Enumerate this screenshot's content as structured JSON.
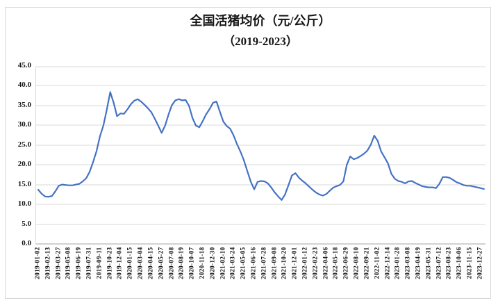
{
  "chart_data": {
    "type": "line",
    "title": "全国活猪均价（元/公斤）（2019-2023）",
    "title_line1": "全国活猪均价（元/公斤）",
    "title_line2": "（2019-2023）",
    "xlabel": "",
    "ylabel": "",
    "unit": "元/公斤",
    "legend": "none",
    "grid": "horizontal",
    "line_color": "#4472C4",
    "gridline_color": "#d9d9d9",
    "axis_line_color": "#a6a6a6",
    "ylim": [
      0,
      45
    ],
    "ytick_step": 5,
    "ytick_labels": [
      "45.0",
      "40.0",
      "35.0",
      "30.0",
      "25.0",
      "20.0",
      "15.0",
      "10.0",
      "5.0",
      "0.0"
    ],
    "points_per_tick": 3,
    "x_tick_labels": [
      "2019-01-02",
      "2019-02-13",
      "2019-03-27",
      "2019-05-08",
      "2019-06-19",
      "2019-07-31",
      "2019-09-11",
      "2019-10-23",
      "2019-12-04",
      "2020-01-15",
      "2020-03-04",
      "2020-04-15",
      "2020-05-27",
      "2020-07-08",
      "2020-08-19",
      "2020-10-07",
      "2020-11-18",
      "2020-12-30",
      "2021-02-10",
      "2021-03-24",
      "2021-05-05",
      "2021-06-16",
      "2021-07-28",
      "2021-09-08",
      "2021-10-20",
      "2021-12-01",
      "2022-01-12",
      "2022-02-23",
      "2022-04-06",
      "2022-05-18",
      "2022-06-29",
      "2022-08-10",
      "2022-09-21",
      "2022-11-02",
      "2022-12-14",
      "2023-01-28",
      "2023-03-08",
      "2023-04-19",
      "2023-05-31",
      "2023-07-12",
      "2023-08-23",
      "2023-10-06",
      "2023-11-15",
      "2023-12-27"
    ],
    "values": [
      13.8,
      12.8,
      12.1,
      12.0,
      12.2,
      13.4,
      14.8,
      15.1,
      15.0,
      14.9,
      14.9,
      15.1,
      15.3,
      15.9,
      16.7,
      18.3,
      20.8,
      23.5,
      27.3,
      30.0,
      34.0,
      38.5,
      35.8,
      32.4,
      33.1,
      33.0,
      34.1,
      35.4,
      36.3,
      36.7,
      36.1,
      35.3,
      34.4,
      33.4,
      31.8,
      30.0,
      28.2,
      30.0,
      32.8,
      35.2,
      36.4,
      36.7,
      36.4,
      36.5,
      35.0,
      31.9,
      30.0,
      29.6,
      31.2,
      32.9,
      34.2,
      35.8,
      36.1,
      33.5,
      31.0,
      29.9,
      29.2,
      27.5,
      25.3,
      23.4,
      21.2,
      18.5,
      15.8,
      13.9,
      15.8,
      16.0,
      15.9,
      15.4,
      14.3,
      13.1,
      12.1,
      11.2,
      12.6,
      15.0,
      17.4,
      18.0,
      16.9,
      16.1,
      15.4,
      14.6,
      13.8,
      13.1,
      12.6,
      12.3,
      12.7,
      13.5,
      14.3,
      14.7,
      15.0,
      15.9,
      20.1,
      22.2,
      21.5,
      21.8,
      22.3,
      22.9,
      23.7,
      25.2,
      27.5,
      26.2,
      23.5,
      22.0,
      20.5,
      17.8,
      16.6,
      16.0,
      15.8,
      15.4,
      15.9,
      16.0,
      15.5,
      15.1,
      14.7,
      14.5,
      14.4,
      14.4,
      14.2,
      15.3,
      17.0,
      17.0,
      16.8,
      16.3,
      15.7,
      15.4,
      15.0,
      14.8,
      14.8,
      14.6,
      14.4,
      14.2,
      14.0
    ]
  }
}
